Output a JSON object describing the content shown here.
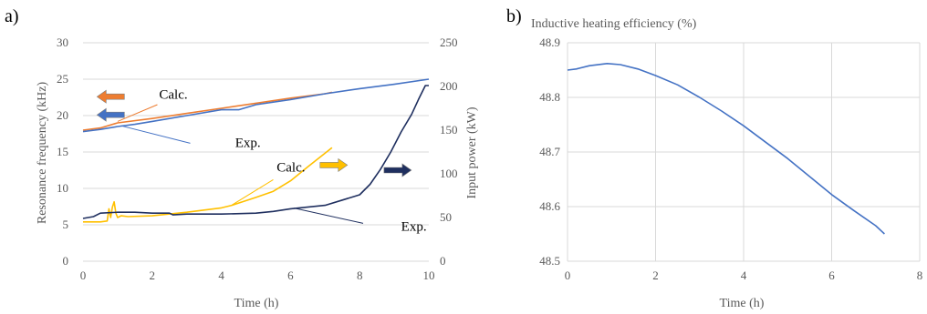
{
  "panels": {
    "a": {
      "label": "a)"
    },
    "b": {
      "label": "b)"
    }
  },
  "chart_data": [
    {
      "type": "line",
      "xlabel": "Time (h)",
      "ylabel": "Resonance frequency (kHz)",
      "y2label": "Input power (kW)",
      "xlim": [
        0,
        10
      ],
      "ylim": [
        0,
        30
      ],
      "y2lim": [
        0,
        250
      ],
      "xticks": [
        "0",
        "2",
        "4",
        "6",
        "8",
        "10"
      ],
      "yticks": [
        "0",
        "5",
        "10",
        "15",
        "20",
        "25",
        "30"
      ],
      "y2ticks": [
        "0",
        "50",
        "100",
        "150",
        "200",
        "250"
      ],
      "grid": "horizontal",
      "colors": {
        "freq_calc": "#ED7D31",
        "freq_exp": "#4472C4",
        "power_calc": "#FFC000",
        "power_exp": "#1F2F5F"
      },
      "series": [
        {
          "axis": "left",
          "color": "#ED7D31",
          "x": [
            0,
            0.5,
            1,
            2,
            3,
            4,
            5,
            6,
            7,
            7.2
          ],
          "y": [
            18.0,
            18.3,
            19.0,
            19.6,
            20.3,
            21.0,
            21.7,
            22.4,
            23.0,
            23.2
          ]
        },
        {
          "axis": "left",
          "color": "#4472C4",
          "x": [
            0,
            0.5,
            1,
            1.5,
            2,
            3,
            4,
            4.5,
            5,
            6,
            7,
            8,
            9,
            10
          ],
          "y": [
            17.8,
            18.1,
            18.5,
            18.8,
            19.2,
            20.0,
            20.8,
            20.8,
            21.5,
            22.2,
            23.0,
            23.7,
            24.3,
            25.0
          ]
        },
        {
          "axis": "right",
          "color": "#FFC000",
          "x": [
            0,
            0.5,
            0.7,
            0.75,
            0.8,
            0.85,
            0.9,
            0.95,
            1.0,
            1.1,
            1.3,
            2,
            3,
            4,
            4.3,
            5,
            5.5,
            6,
            6.5,
            7.2
          ],
          "y": [
            45,
            45,
            46,
            60,
            50,
            62,
            68,
            55,
            50,
            52,
            51,
            52,
            56,
            61,
            64,
            73,
            80,
            92,
            108,
            130
          ]
        },
        {
          "axis": "right",
          "color": "#1F2F5F",
          "x": [
            0,
            0.3,
            0.5,
            1,
            1.5,
            2,
            2.5,
            2.6,
            3,
            4,
            5,
            5.5,
            6,
            7,
            7.5,
            8,
            8.3,
            8.6,
            8.9,
            9.2,
            9.5,
            9.7,
            9.9,
            10
          ],
          "y": [
            49,
            51,
            55,
            56,
            56,
            55,
            55,
            53,
            54,
            54,
            55,
            57,
            60,
            64,
            70,
            76,
            88,
            105,
            125,
            148,
            168,
            185,
            201,
            201
          ]
        }
      ],
      "annotations": [
        {
          "text": "Calc.",
          "x": 2.2,
          "y": 22.3
        },
        {
          "text": "Exp.",
          "x": 4.4,
          "y": 15.7
        },
        {
          "text": "Calc.",
          "x": 5.6,
          "y": 12.3
        },
        {
          "text": "Exp.",
          "x": 9.2,
          "y": 4.2
        }
      ],
      "arrows": [
        {
          "color": "#ED7D31",
          "x": 0.8,
          "y": 22.6,
          "direction": "left"
        },
        {
          "color": "#4472C4",
          "x": 0.8,
          "y": 20.1,
          "direction": "left"
        },
        {
          "color": "#FFC000",
          "x": 7.25,
          "y": 13.2,
          "direction": "right"
        },
        {
          "color": "#1F2F5F",
          "x": 9.1,
          "y": 12.5,
          "direction": "right"
        }
      ]
    },
    {
      "type": "line",
      "title": "Inductive heating efficiency (%)",
      "xlabel": "Time (h)",
      "xlim": [
        0,
        8
      ],
      "ylim": [
        48.5,
        48.9
      ],
      "xticks": [
        "0",
        "2",
        "4",
        "6",
        "8"
      ],
      "yticks": [
        "48.5",
        "48.6",
        "48.7",
        "48.8",
        "48.9"
      ],
      "grid": "both",
      "series": [
        {
          "color": "#4472C4",
          "x": [
            0,
            0.2,
            0.5,
            0.9,
            1.2,
            1.6,
            2,
            2.5,
            3,
            3.5,
            4,
            4.5,
            5,
            5.5,
            6,
            6.5,
            7,
            7.2
          ],
          "y": [
            48.85,
            48.852,
            48.858,
            48.862,
            48.86,
            48.852,
            48.84,
            48.823,
            48.8,
            48.775,
            48.748,
            48.718,
            48.688,
            48.655,
            48.622,
            48.593,
            48.565,
            48.55
          ]
        }
      ]
    }
  ]
}
